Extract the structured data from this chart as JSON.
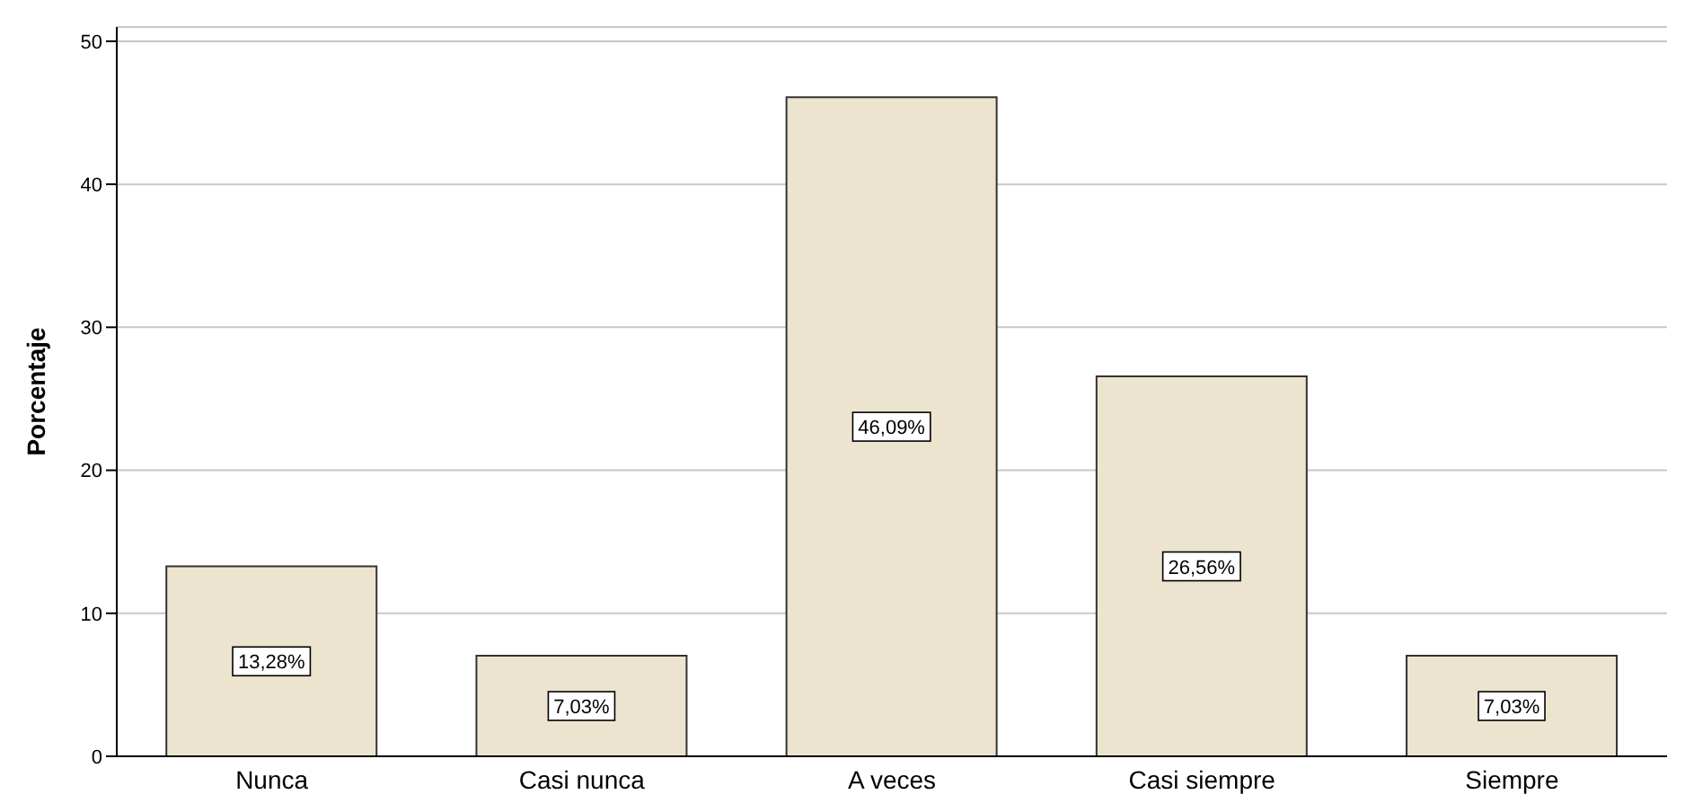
{
  "chart_data": {
    "type": "bar",
    "ylabel": "Porcentaje",
    "categories": [
      "Nunca",
      "Casi nunca",
      "A veces",
      "Casi siempre",
      "Siempre"
    ],
    "values": [
      13.28,
      7.03,
      46.09,
      26.56,
      7.03
    ],
    "value_labels": [
      "13,28%",
      "7,03%",
      "46,09%",
      "26,56%",
      "7,03%"
    ],
    "color": "#ece4cf",
    "ylim": [
      0,
      51
    ],
    "yticks": [
      0,
      10,
      20,
      30,
      40,
      50
    ],
    "grid": "y"
  }
}
